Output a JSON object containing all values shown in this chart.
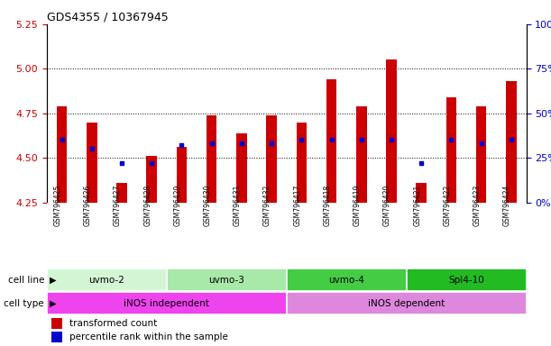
{
  "title": "GDS4355 / 10367945",
  "samples": [
    "GSM796425",
    "GSM796426",
    "GSM796427",
    "GSM796428",
    "GSM796429",
    "GSM796430",
    "GSM796431",
    "GSM796432",
    "GSM796417",
    "GSM796418",
    "GSM796419",
    "GSM796420",
    "GSM796421",
    "GSM796422",
    "GSM796423",
    "GSM796424"
  ],
  "red_values": [
    4.79,
    4.7,
    4.36,
    4.51,
    4.56,
    4.74,
    4.64,
    4.74,
    4.7,
    4.94,
    4.79,
    5.05,
    4.36,
    4.84,
    4.79,
    4.93
  ],
  "blue_percentiles": [
    35,
    30,
    22,
    22,
    32,
    33,
    33,
    33,
    35,
    35,
    35,
    35,
    22,
    35,
    33,
    35
  ],
  "ylim_left": [
    4.25,
    5.25
  ],
  "ylim_right": [
    0,
    100
  ],
  "yticks_left": [
    4.25,
    4.5,
    4.75,
    5.0,
    5.25
  ],
  "yticks_right": [
    0,
    25,
    50,
    75,
    100
  ],
  "hlines": [
    4.5,
    4.75,
    5.0
  ],
  "cell_line_groups": [
    {
      "label": "uvmo-2",
      "start": 0,
      "end": 4,
      "color": "#d4f5d4"
    },
    {
      "label": "uvmo-3",
      "start": 4,
      "end": 8,
      "color": "#a8e8a8"
    },
    {
      "label": "uvmo-4",
      "start": 8,
      "end": 12,
      "color": "#44cc44"
    },
    {
      "label": "Spl4-10",
      "start": 12,
      "end": 16,
      "color": "#22bb22"
    }
  ],
  "cell_type_groups": [
    {
      "label": "iNOS independent",
      "start": 0,
      "end": 8,
      "color": "#ee44ee"
    },
    {
      "label": "iNOS dependent",
      "start": 8,
      "end": 16,
      "color": "#dd88dd"
    }
  ],
  "bar_color": "#cc0000",
  "marker_color": "#0000cc",
  "axis_left_color": "#cc0000",
  "axis_right_color": "#0000cc",
  "background_color": "#ffffff",
  "tick_area_color": "#cccccc",
  "legend_red": "transformed count",
  "legend_blue": "percentile rank within the sample",
  "cell_line_label": "cell line",
  "cell_type_label": "cell type",
  "bar_width": 0.35
}
